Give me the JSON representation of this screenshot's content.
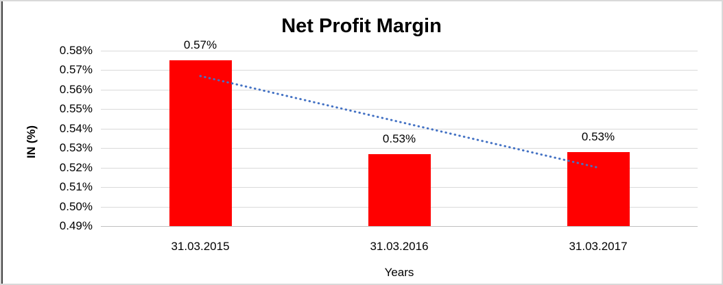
{
  "frame": {
    "background": "#FFFFFF",
    "outer_border_color": "#D9D9D9",
    "left_edge_line_color": "#3F3F3F"
  },
  "chart_data": {
    "type": "bar",
    "title": "Net Profit Margin",
    "xlabel": "Years",
    "ylabel": "IN (%)",
    "categories": [
      "31.03.2015",
      "31.03.2016",
      "31.03.2017"
    ],
    "series": [
      {
        "name": "Net Profit Margin",
        "values": [
          0.575,
          0.527,
          0.528
        ],
        "data_labels": [
          "0.57%",
          "0.53%",
          "0.53%"
        ],
        "color": "#FF0000"
      }
    ],
    "ylim": [
      0.49,
      0.58
    ],
    "ytick_step": 0.01,
    "yticks": [
      {
        "value": 0.49,
        "label": "0.49%"
      },
      {
        "value": 0.5,
        "label": "0.50%"
      },
      {
        "value": 0.51,
        "label": "0.51%"
      },
      {
        "value": 0.52,
        "label": "0.52%"
      },
      {
        "value": 0.53,
        "label": "0.53%"
      },
      {
        "value": 0.54,
        "label": "0.54%"
      },
      {
        "value": 0.55,
        "label": "0.55%"
      },
      {
        "value": 0.56,
        "label": "0.56%"
      },
      {
        "value": 0.57,
        "label": "0.57%"
      },
      {
        "value": 0.58,
        "label": "0.58%"
      }
    ],
    "grid": true,
    "gridline_color": "#D9D9D9",
    "axis_line_color": "#BFBFBF",
    "legend": "none",
    "text_color": "#000000",
    "trendline": {
      "style": "dotted",
      "color": "#4472C4",
      "start_value": 0.567,
      "end_value": 0.52
    }
  }
}
